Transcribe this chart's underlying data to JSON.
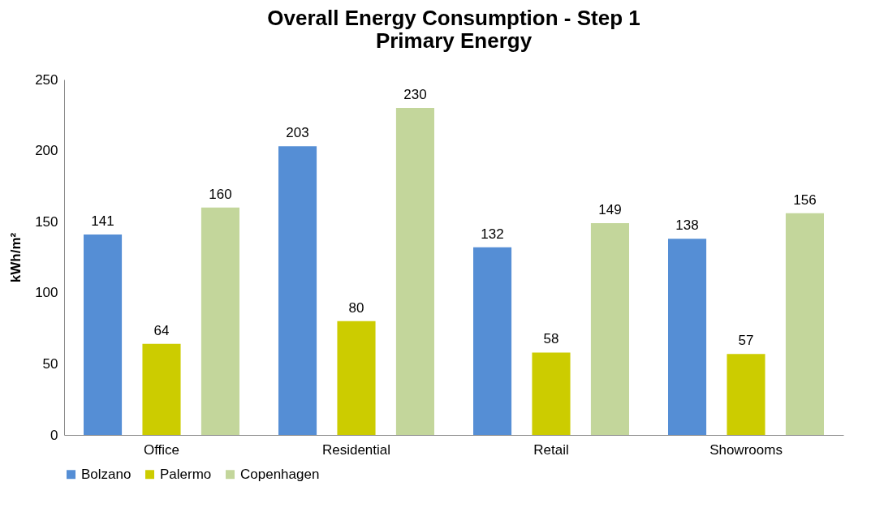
{
  "chart_data": {
    "type": "bar",
    "title": "Overall Energy Consumption - Step 1",
    "subtitle": "Primary Energy",
    "ylabel": "kWh/m²",
    "categories": [
      "Office",
      "Residential",
      "Retail",
      "Showrooms"
    ],
    "series": [
      {
        "name": "Bolzano",
        "color": "#558ed5",
        "values": [
          141,
          203,
          132,
          138
        ]
      },
      {
        "name": "Palermo",
        "color": "#cccc00",
        "values": [
          64,
          80,
          58,
          57
        ]
      },
      {
        "name": "Copenhagen",
        "color": "#c3d69b",
        "values": [
          160,
          230,
          149,
          156
        ]
      }
    ],
    "ylim": [
      0,
      250
    ],
    "yticks": [
      0,
      50,
      100,
      150,
      200,
      250
    ],
    "data_labels": true,
    "legend": "bottom"
  }
}
